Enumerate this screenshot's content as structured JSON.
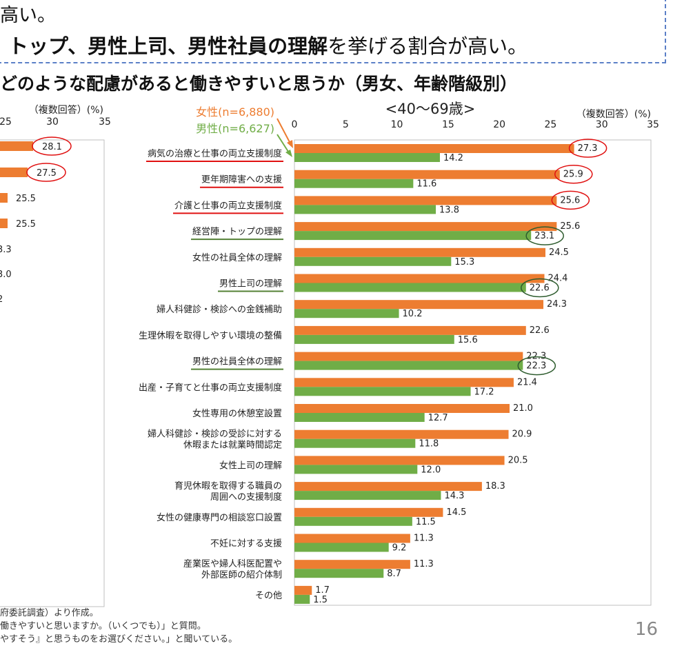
{
  "header": {
    "top_line": "高い。",
    "headline_bold": "トップ、男性上司、男性社員の理解",
    "headline_rest": "を挙げる割合が高い。",
    "subtitle": "どのような配慮があると働きやすいと思うか（男女、年齢階級別）"
  },
  "left_panel": {
    "unit_label": "（複数回答）(%)",
    "ticks": [
      "25",
      "30",
      "35"
    ],
    "values": [
      "28.1",
      "27.5",
      "25.5",
      "25.5",
      "3.3",
      "3.0",
      "2"
    ]
  },
  "colors": {
    "female": "#ED7D31",
    "male": "#70AD47",
    "red_mark": "#E01010",
    "green_mark": "#2E5C2E",
    "arrow": "#ED7D31"
  },
  "chart_data": {
    "type": "bar",
    "orientation": "horizontal",
    "title": "<40～69歳>",
    "unit_label": "（複数回答）(%)",
    "xlim": [
      0,
      35
    ],
    "xticks": [
      0,
      5,
      10,
      15,
      20,
      25,
      30,
      35
    ],
    "legend": [
      "女性(n=6,880)",
      "男性(n=6,627)"
    ],
    "categories": [
      [
        "病気の治療と仕事の両立支援制度"
      ],
      [
        "更年期障害への支援"
      ],
      [
        "介護と仕事の両立支援制度"
      ],
      [
        "経営陣・トップの理解"
      ],
      [
        "女性の社員全体の理解"
      ],
      [
        "男性上司の理解"
      ],
      [
        "婦人科健診・検診への金銭補助"
      ],
      [
        "生理休暇を取得しやすい環境の整備"
      ],
      [
        "男性の社員全体の理解"
      ],
      [
        "出産・子育てと仕事の両立支援制度"
      ],
      [
        "女性専用の休憩室設置"
      ],
      [
        "婦人科健診・検診の受診に対する",
        "休暇または就業時間認定"
      ],
      [
        "女性上司の理解"
      ],
      [
        "育児休暇を取得する職員の",
        "周囲への支援制度"
      ],
      [
        "女性の健康専門の相談窓口設置"
      ],
      [
        "不妊に対する支援"
      ],
      [
        "産業医や婦人科医配置や",
        "外部医師の紹介体制"
      ],
      [
        "その他"
      ]
    ],
    "series": [
      {
        "name": "女性(n=6,880)",
        "values": [
          27.3,
          25.9,
          25.6,
          25.6,
          24.5,
          24.4,
          24.3,
          22.6,
          22.3,
          21.4,
          21.0,
          20.9,
          20.5,
          18.3,
          14.5,
          11.3,
          11.3,
          1.7
        ]
      },
      {
        "name": "男性(n=6,627)",
        "values": [
          14.2,
          11.6,
          13.8,
          23.1,
          15.3,
          22.6,
          10.2,
          15.6,
          22.3,
          17.2,
          12.7,
          11.8,
          12.0,
          14.3,
          11.5,
          9.2,
          8.7,
          1.5
        ]
      }
    ],
    "red_underlined_categories": [
      0,
      1,
      2
    ],
    "green_underlined_categories": [
      3,
      5,
      8
    ],
    "red_circled_female_values": [
      0,
      1,
      2
    ],
    "green_circled_male_values": [
      3,
      5,
      8
    ]
  },
  "notes": [
    "府委託調査）より作成。",
    "働きやすいと思いますか。（いくつでも）」と質問。",
    "やすそう』と思うものをお選びください。」と聞いている。"
  ],
  "page_number": "16"
}
